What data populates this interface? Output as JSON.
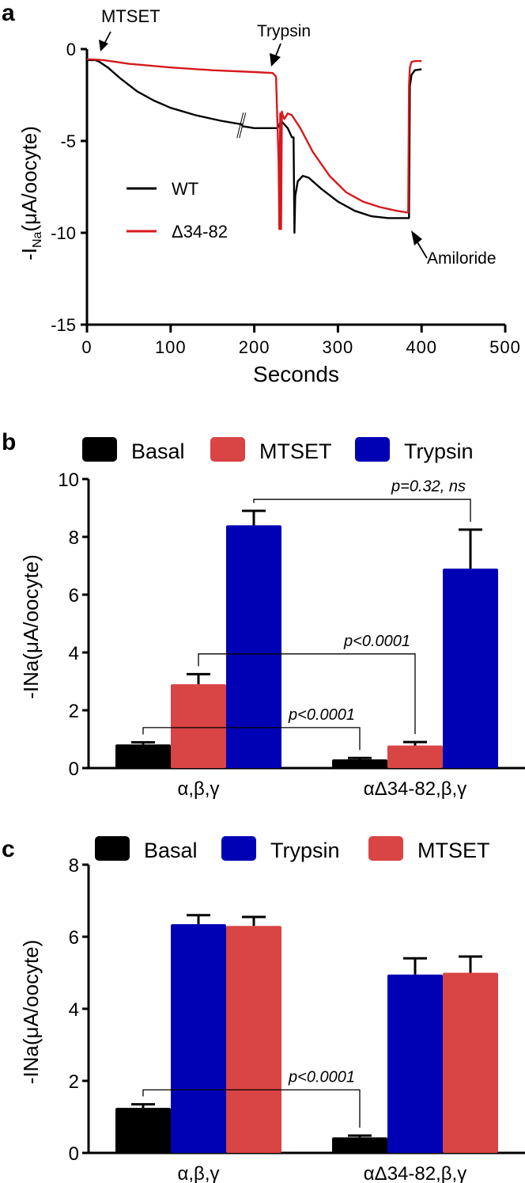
{
  "chart_data": [
    {
      "panel": "a",
      "type": "line",
      "xlabel": "Seconds",
      "ylabel": "-I",
      "ylabel_sub": "Na",
      "ylabel_suffix": "(μA/oocyte)",
      "xlim": [
        0,
        500
      ],
      "ylim": [
        -15,
        0
      ],
      "xticks": [
        "0",
        "100",
        "200",
        "300",
        "400",
        "500"
      ],
      "xtick_values": [
        0,
        100,
        200,
        300,
        400,
        500
      ],
      "yticks": [
        "0",
        "-5",
        "-10",
        "-15"
      ],
      "ytick_values": [
        0,
        -5,
        -10,
        -15
      ],
      "legend": [
        "WT",
        "Δ34-82"
      ],
      "legend_position": "center-left",
      "annotations": [
        {
          "text": "MTSET",
          "x": 15,
          "y": -0.5,
          "arrow": "down"
        },
        {
          "text": "Trypsin",
          "x": 222,
          "y": -1.2,
          "arrow": "down"
        },
        {
          "text": "Amiloride",
          "x": 388,
          "y": -9.3,
          "arrow": "up-left"
        }
      ],
      "axis_break_at_x": 185,
      "series": [
        {
          "name": "WT",
          "color": "#000000",
          "x": [
            0,
            10,
            15,
            25,
            40,
            60,
            80,
            100,
            130,
            160,
            185,
            186,
            200,
            225,
            228,
            232,
            240,
            245,
            247,
            248,
            249,
            252,
            258,
            265,
            280,
            300,
            320,
            340,
            360,
            375,
            385,
            386,
            388,
            392,
            400
          ],
          "y": [
            -0.6,
            -0.6,
            -0.7,
            -1.0,
            -1.6,
            -2.3,
            -2.8,
            -3.2,
            -3.6,
            -3.9,
            -4.1,
            -4.2,
            -4.3,
            -4.3,
            -4.3,
            -3.9,
            -4.3,
            -4.8,
            -4.8,
            -10.0,
            -8.0,
            -7.2,
            -6.9,
            -7.0,
            -7.6,
            -8.3,
            -8.8,
            -9.1,
            -9.2,
            -9.2,
            -9.2,
            -2.0,
            -1.4,
            -1.15,
            -1.1
          ]
        },
        {
          "name": "Δ34-82",
          "color": "#d7191c",
          "x": [
            0,
            20,
            50,
            100,
            150,
            200,
            222,
            226,
            229,
            230,
            231,
            232,
            233,
            234,
            236,
            240,
            245,
            255,
            270,
            290,
            310,
            330,
            350,
            370,
            384,
            385,
            386,
            388,
            392,
            400
          ],
          "y": [
            -0.55,
            -0.6,
            -0.8,
            -1.0,
            -1.15,
            -1.25,
            -1.3,
            -1.5,
            -6.0,
            -9.8,
            -3.5,
            -9.8,
            -3.4,
            -3.6,
            -3.8,
            -3.5,
            -3.6,
            -4.3,
            -5.6,
            -6.9,
            -7.8,
            -8.3,
            -8.6,
            -8.8,
            -8.9,
            -2.0,
            -1.0,
            -0.7,
            -0.65,
            -0.65
          ]
        }
      ]
    },
    {
      "panel": "b",
      "type": "bar",
      "ylabel": "-INa(μA/oocyte)",
      "ylim": [
        0,
        10
      ],
      "yticks": [
        "0",
        "2",
        "4",
        "6",
        "8",
        "10"
      ],
      "ytick_values": [
        0,
        2,
        4,
        6,
        8,
        10
      ],
      "categories": [
        "α,β,γ",
        "αΔ34-82,β,γ"
      ],
      "legend_position": "top",
      "series": [
        {
          "name": "Basal",
          "color": "#000000",
          "values": [
            0.82,
            0.3
          ],
          "errors": [
            0.07,
            0.05
          ]
        },
        {
          "name": "MTSET",
          "color": "#d94444",
          "values": [
            2.9,
            0.78
          ],
          "errors": [
            0.35,
            0.12
          ]
        },
        {
          "name": "Trypsin",
          "color": "#0000b4",
          "values": [
            8.4,
            6.9
          ],
          "errors": [
            0.5,
            1.35
          ]
        }
      ],
      "comparisons": [
        {
          "label": "p=0.32, ns",
          "from": [
            0,
            2
          ],
          "to": [
            1,
            2
          ],
          "level": 9.3
        },
        {
          "label": "p<0.0001",
          "from": [
            0,
            1
          ],
          "to": [
            1,
            1
          ],
          "level": 3.95
        },
        {
          "label": "p<0.0001",
          "from": [
            0,
            0
          ],
          "to": [
            1,
            0
          ],
          "level": 1.4
        }
      ]
    },
    {
      "panel": "c",
      "type": "bar",
      "ylabel": "-INa(μA/oocyte)",
      "ylim": [
        0,
        8
      ],
      "yticks": [
        "0",
        "2",
        "4",
        "6",
        "8"
      ],
      "ytick_values": [
        0,
        2,
        4,
        6,
        8
      ],
      "categories": [
        "α,β,γ",
        "αΔ34-82,β,γ"
      ],
      "legend_position": "top",
      "series": [
        {
          "name": "Basal",
          "color": "#000000",
          "values": [
            1.25,
            0.43
          ],
          "errors": [
            0.1,
            0.05
          ]
        },
        {
          "name": "Trypsin",
          "color": "#0000b4",
          "values": [
            6.35,
            4.95
          ],
          "errors": [
            0.25,
            0.45
          ]
        },
        {
          "name": "MTSET",
          "color": "#d94444",
          "values": [
            6.3,
            5.0
          ],
          "errors": [
            0.25,
            0.45
          ]
        }
      ],
      "comparisons": [
        {
          "label": "p<0.0001",
          "from": [
            0,
            0
          ],
          "to": [
            1,
            0
          ],
          "level": 1.75
        }
      ]
    }
  ],
  "panel_labels": [
    "a",
    "b",
    "c"
  ]
}
